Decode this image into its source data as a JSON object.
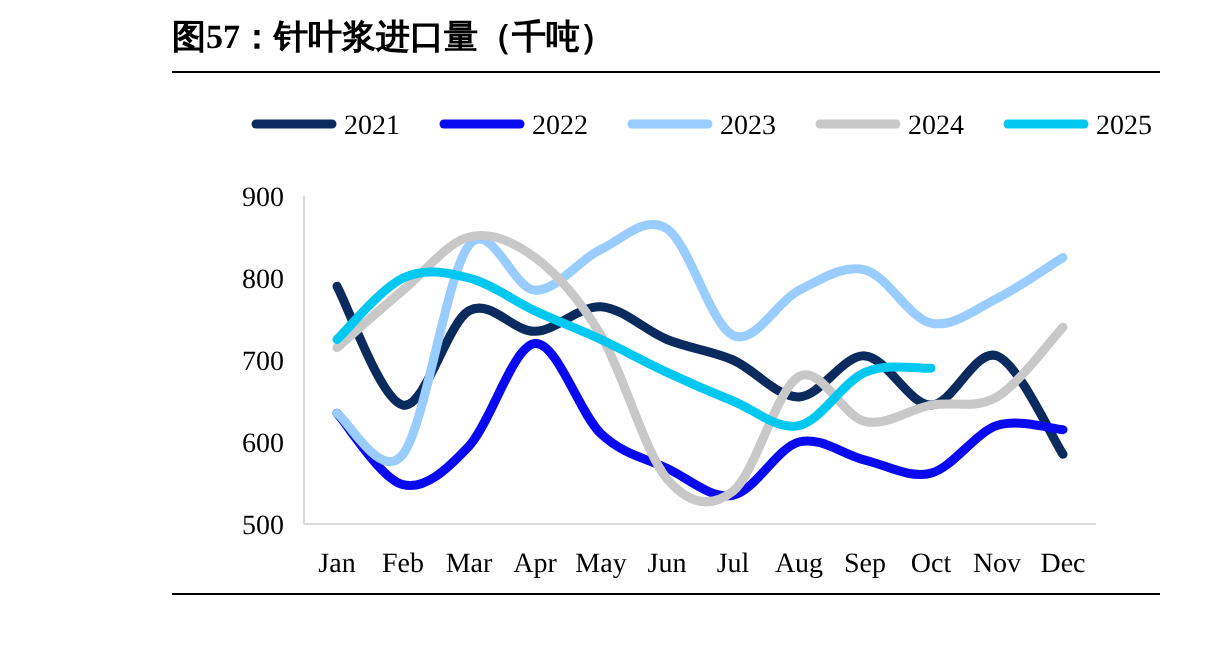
{
  "chart_data": {
    "type": "line",
    "title": "图57：针叶浆进口量（千吨）",
    "categories": [
      "Jan",
      "Feb",
      "Mar",
      "Apr",
      "May",
      "Jun",
      "Jul",
      "Aug",
      "Sep",
      "Oct",
      "Nov",
      "Dec"
    ],
    "series": [
      {
        "name": "2021",
        "color": "#0b2a5e",
        "values": [
          790,
          645,
          760,
          735,
          765,
          725,
          700,
          655,
          705,
          645,
          705,
          585
        ]
      },
      {
        "name": "2022",
        "color": "#0a0af0",
        "values": [
          635,
          548,
          595,
          720,
          610,
          568,
          535,
          600,
          578,
          562,
          620,
          615
        ]
      },
      {
        "name": "2023",
        "color": "#99ccff",
        "values": [
          635,
          585,
          840,
          785,
          835,
          860,
          730,
          785,
          810,
          745,
          775,
          825
        ]
      },
      {
        "name": "2024",
        "color": "#c8c8c8",
        "values": [
          715,
          785,
          850,
          825,
          730,
          555,
          540,
          680,
          625,
          645,
          655,
          740
        ]
      },
      {
        "name": "2025",
        "color": "#00c8f0",
        "values": [
          725,
          800,
          800,
          760,
          725,
          685,
          650,
          620,
          685,
          690,
          null,
          null
        ]
      }
    ],
    "ylim": [
      500,
      900
    ],
    "yticks": [
      500,
      600,
      700,
      800,
      900
    ],
    "legend": "top",
    "line_style": "solid"
  }
}
